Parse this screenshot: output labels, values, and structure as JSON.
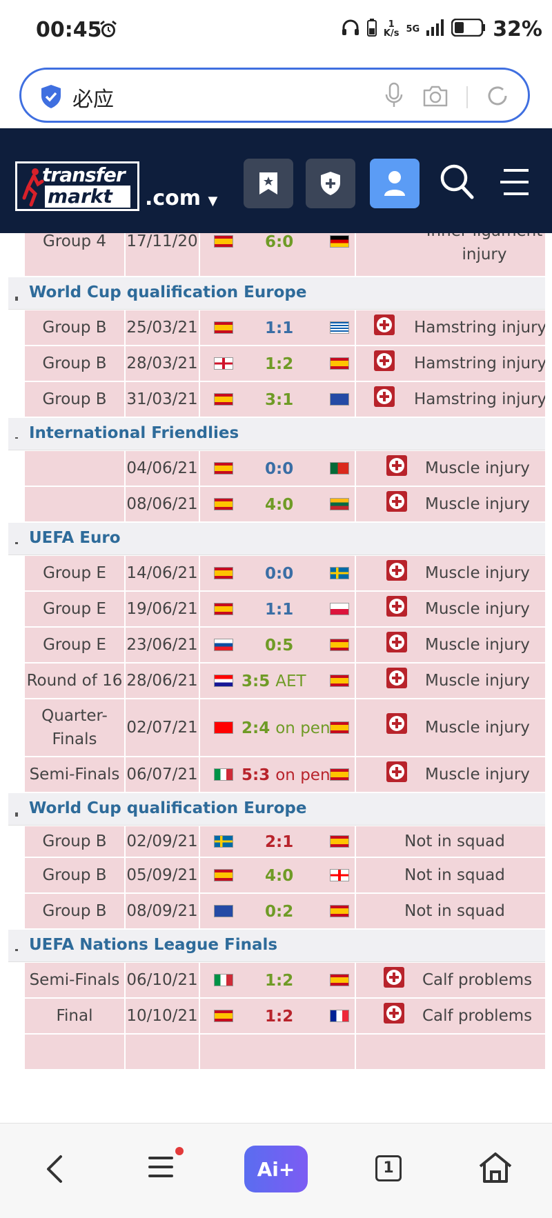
{
  "status_bar": {
    "time": "00:45",
    "net_speed_value": "1",
    "net_speed_unit": "K/s",
    "network": "5G",
    "battery": "32%"
  },
  "search": {
    "query": "必应"
  },
  "header": {
    "logo_top": "transfer",
    "logo_bottom": "markt",
    "domain": ".com"
  },
  "competitions": [
    {
      "name": "World Cup qualification Europe"
    },
    {
      "name": "International Friendlies"
    },
    {
      "name": "UEFA Euro"
    },
    {
      "name": "World Cup qualification Europe"
    },
    {
      "name": "UEFA Nations League Finals"
    }
  ],
  "matches": [
    {
      "round": "Group 4",
      "date": "17/11/20",
      "score": "6:0",
      "suffix": "",
      "injury": "Inner ligament injury"
    },
    {
      "round": "Group B",
      "date": "25/03/21",
      "score": "1:1",
      "suffix": "",
      "injury": "Hamstring injury"
    },
    {
      "round": "Group B",
      "date": "28/03/21",
      "score": "1:2",
      "suffix": "",
      "injury": "Hamstring injury"
    },
    {
      "round": "Group B",
      "date": "31/03/21",
      "score": "3:1",
      "suffix": "",
      "injury": "Hamstring injury"
    },
    {
      "round": "",
      "date": "04/06/21",
      "score": "0:0",
      "suffix": "",
      "injury": "Muscle injury"
    },
    {
      "round": "",
      "date": "08/06/21",
      "score": "4:0",
      "suffix": "",
      "injury": "Muscle injury"
    },
    {
      "round": "Group E",
      "date": "14/06/21",
      "score": "0:0",
      "suffix": "",
      "injury": "Muscle injury"
    },
    {
      "round": "Group E",
      "date": "19/06/21",
      "score": "1:1",
      "suffix": "",
      "injury": "Muscle injury"
    },
    {
      "round": "Group E",
      "date": "23/06/21",
      "score": "0:5",
      "suffix": "",
      "injury": "Muscle injury"
    },
    {
      "round": "Round of 16",
      "date": "28/06/21",
      "score": "3:5",
      "suffix": "AET",
      "injury": "Muscle injury"
    },
    {
      "round": "Quarter-Finals",
      "date": "02/07/21",
      "score": "2:4",
      "suffix": "on pens",
      "injury": "Muscle injury"
    },
    {
      "round": "Semi-Finals",
      "date": "06/07/21",
      "score": "5:3",
      "suffix": "on pens",
      "injury": "Muscle injury"
    },
    {
      "round": "Group B",
      "date": "02/09/21",
      "score": "2:1",
      "suffix": "",
      "injury": "Not in squad"
    },
    {
      "round": "Group B",
      "date": "05/09/21",
      "score": "4:0",
      "suffix": "",
      "injury": "Not in squad"
    },
    {
      "round": "Group B",
      "date": "08/09/21",
      "score": "0:2",
      "suffix": "",
      "injury": "Not in squad"
    },
    {
      "round": "Semi-Finals",
      "date": "06/10/21",
      "score": "1:2",
      "suffix": "",
      "injury": "Calf problems"
    },
    {
      "round": "Final",
      "date": "10/10/21",
      "score": "1:2",
      "suffix": "",
      "injury": "Calf problems"
    }
  ],
  "bottom_nav": {
    "ai_label": "Ai+",
    "tab_count": "1"
  },
  "colors": {
    "header_bg": "#0e1e3c",
    "row_bg": "#f2d6da",
    "win": "#6f9b26",
    "draw": "#3a6ea5",
    "loss": "#b8232b"
  }
}
